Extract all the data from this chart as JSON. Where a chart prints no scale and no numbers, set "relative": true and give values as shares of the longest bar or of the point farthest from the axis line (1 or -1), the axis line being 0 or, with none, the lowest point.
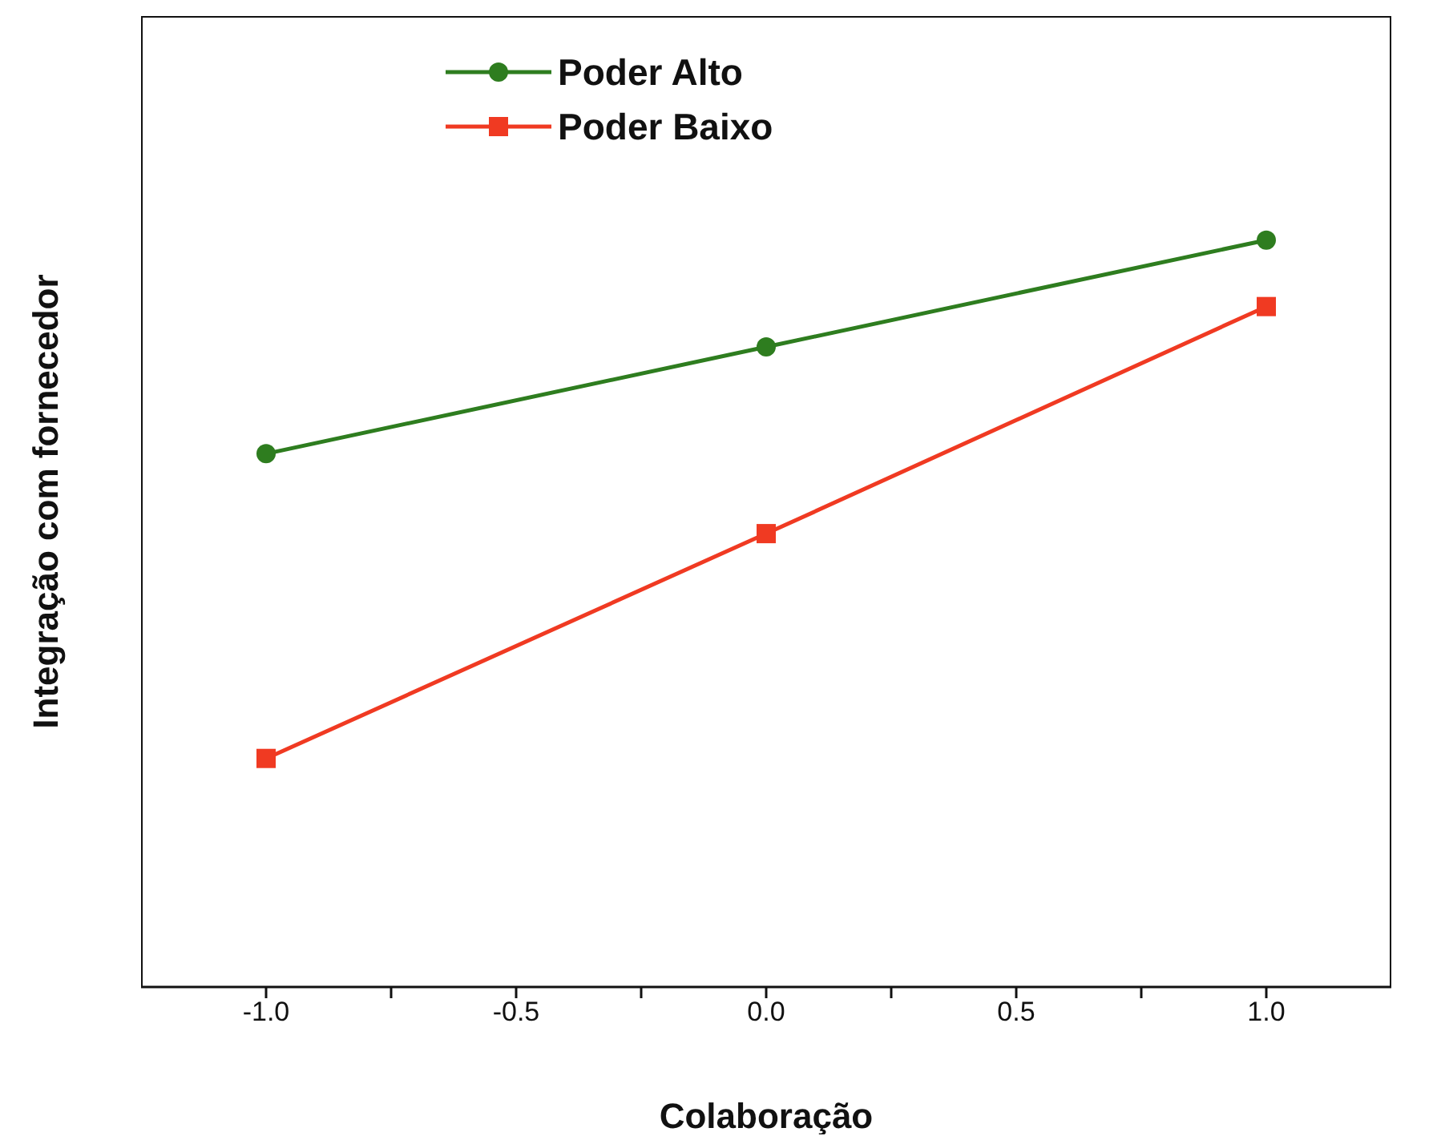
{
  "chart_data": {
    "type": "line",
    "xlabel": "Colaboração",
    "ylabel": "Integração com fornecedor",
    "relative": true,
    "x": [
      -1,
      0,
      1
    ],
    "xlim": [
      -1.25,
      1.25
    ],
    "xticks": [
      {
        "value": -1,
        "label": "-1.0"
      },
      {
        "value": -0.75,
        "label": null
      },
      {
        "value": -0.5,
        "label": "-0.5"
      },
      {
        "value": -0.25,
        "label": null
      },
      {
        "value": 0,
        "label": "0.0"
      },
      {
        "value": 0.25,
        "label": null
      },
      {
        "value": 0.5,
        "label": "0.5"
      },
      {
        "value": 0.75,
        "label": null
      },
      {
        "value": 1,
        "label": "1.0"
      }
    ],
    "series": [
      {
        "name": "Poder Alto",
        "color": "#2e7d1f",
        "marker": "circle",
        "values": [
          0.714,
          0.857,
          1
        ]
      },
      {
        "name": "Poder Baixo",
        "color": "#f03a22",
        "marker": "square",
        "values": [
          0.306,
          0.607,
          0.911
        ]
      }
    ],
    "legend": "top left",
    "grid": false,
    "line_style": "solid"
  }
}
